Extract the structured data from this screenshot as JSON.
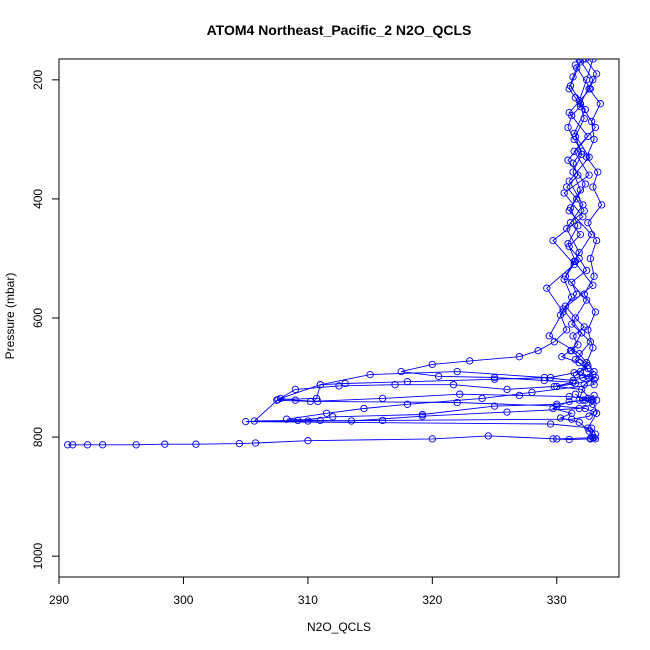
{
  "chart_data": {
    "type": "line",
    "title": "ATOM4 Northeast_Pacific_2 N2O_QCLS",
    "xlabel": "N2O_QCLS",
    "ylabel": "Pressure (mbar)",
    "xlim": [
      290,
      335
    ],
    "ylim": [
      1035,
      165
    ],
    "y_reversed": true,
    "x_ticks": [
      290,
      300,
      310,
      320,
      330
    ],
    "y_ticks": [
      200,
      400,
      600,
      800,
      1000
    ],
    "grid": false,
    "legend": "none",
    "marker": "open-circle",
    "color": "#0000ff",
    "series": [
      {
        "values": [
          [
            332.1,
            165
          ],
          [
            331.6,
            180
          ],
          [
            331.3,
            195
          ],
          [
            331.0,
            215
          ],
          [
            331.5,
            230
          ],
          [
            331.9,
            245
          ],
          [
            331.2,
            260
          ],
          [
            330.9,
            280
          ],
          [
            331.4,
            300
          ],
          [
            332.0,
            320
          ],
          [
            331.3,
            340
          ],
          [
            331.7,
            360
          ],
          [
            330.8,
            380
          ],
          [
            331.6,
            400
          ],
          [
            332.2,
            420
          ],
          [
            331.1,
            440
          ],
          [
            331.9,
            460
          ],
          [
            331.0,
            480
          ],
          [
            331.8,
            500
          ],
          [
            332.4,
            520
          ],
          [
            331.2,
            540
          ],
          [
            331.6,
            560
          ],
          [
            330.7,
            580
          ],
          [
            331.5,
            600
          ],
          [
            332.2,
            615
          ],
          [
            331.3,
            630
          ],
          [
            331.7,
            645
          ],
          [
            331.1,
            655
          ],
          [
            330.4,
            665
          ],
          [
            331.8,
            675
          ],
          [
            332.5,
            685
          ],
          [
            331.4,
            692
          ],
          [
            329.5,
            700
          ],
          [
            325.0,
            703
          ],
          [
            318.0,
            707
          ],
          [
            313.0,
            710
          ],
          [
            311.0,
            712
          ],
          [
            307.8,
            735
          ],
          [
            309.0,
            738
          ],
          [
            310.8,
            740
          ],
          [
            322.0,
            742
          ],
          [
            330.0,
            748
          ],
          [
            332.3,
            752
          ],
          [
            333.0,
            758
          ],
          [
            332.6,
            765
          ],
          [
            331.2,
            770
          ],
          [
            316.0,
            772
          ],
          [
            310.0,
            773
          ],
          [
            305.0,
            774
          ],
          [
            329.5,
            778
          ],
          [
            332.8,
            785
          ],
          [
            333.1,
            795
          ],
          [
            332.9,
            801
          ],
          [
            330.0,
            803
          ],
          [
            324.5,
            798
          ],
          [
            320.0,
            803
          ],
          [
            310.0,
            806
          ],
          [
            305.8,
            810
          ],
          [
            304.5,
            811
          ],
          [
            301.0,
            812
          ],
          [
            298.5,
            812
          ],
          [
            296.2,
            813
          ],
          [
            293.5,
            813
          ],
          [
            292.3,
            813
          ],
          [
            291.1,
            813
          ],
          [
            290.7,
            813
          ]
        ]
      },
      {
        "values": [
          [
            332.3,
            165
          ],
          [
            333.2,
            190
          ],
          [
            332.6,
            215
          ],
          [
            333.5,
            240
          ],
          [
            332.8,
            270
          ],
          [
            333.0,
            300
          ],
          [
            332.4,
            330
          ],
          [
            333.3,
            355
          ],
          [
            332.9,
            380
          ],
          [
            333.6,
            410
          ],
          [
            332.5,
            440
          ],
          [
            333.2,
            470
          ],
          [
            332.7,
            500
          ],
          [
            333.0,
            530
          ],
          [
            332.2,
            560
          ],
          [
            333.1,
            590
          ],
          [
            332.5,
            620
          ],
          [
            332.9,
            650
          ],
          [
            332.4,
            675
          ],
          [
            331.9,
            690
          ],
          [
            332.6,
            700
          ],
          [
            333.0,
            712
          ],
          [
            328.0,
            725
          ],
          [
            324.0,
            735
          ],
          [
            318.0,
            745
          ],
          [
            314.5,
            752
          ],
          [
            311.5,
            760
          ],
          [
            308.3,
            770
          ],
          [
            311.0,
            772
          ],
          [
            313.5,
            773
          ],
          [
            319.2,
            765
          ],
          [
            326.0,
            758
          ],
          [
            331.8,
            752
          ],
          [
            332.9,
            745
          ],
          [
            332.3,
            738
          ],
          [
            331.5,
            728
          ]
        ]
      },
      {
        "values": [
          [
            332.9,
            165
          ],
          [
            332.4,
            200
          ],
          [
            331.8,
            235
          ],
          [
            332.2,
            265
          ],
          [
            331.5,
            295
          ],
          [
            332.0,
            325
          ],
          [
            331.3,
            355
          ],
          [
            331.9,
            385
          ],
          [
            331.1,
            415
          ],
          [
            331.7,
            445
          ],
          [
            330.9,
            475
          ],
          [
            331.5,
            505
          ],
          [
            330.6,
            535
          ],
          [
            331.2,
            565
          ],
          [
            330.3,
            595
          ],
          [
            330.8,
            620
          ],
          [
            329.8,
            640
          ],
          [
            328.5,
            655
          ],
          [
            327.0,
            665
          ],
          [
            323.0,
            672
          ],
          [
            320.0,
            678
          ],
          [
            317.5,
            690
          ],
          [
            320.5,
            698
          ],
          [
            325.0,
            700
          ],
          [
            329.0,
            705
          ],
          [
            331.3,
            708
          ],
          [
            329.8,
            715
          ],
          [
            326.0,
            720
          ],
          [
            321.7,
            712
          ],
          [
            317.0,
            712
          ],
          [
            312.5,
            714
          ],
          [
            309.0,
            720
          ],
          [
            307.5,
            738
          ],
          [
            310.2,
            740
          ],
          [
            316.0,
            735
          ],
          [
            322.2,
            728
          ],
          [
            327.0,
            730
          ],
          [
            331.0,
            732
          ],
          [
            332.5,
            735
          ],
          [
            333.2,
            738
          ]
        ]
      },
      {
        "values": [
          [
            331.8,
            165
          ],
          [
            332.9,
            200
          ],
          [
            331.9,
            240
          ],
          [
            333.1,
            280
          ],
          [
            331.4,
            320
          ],
          [
            332.6,
            360
          ],
          [
            330.6,
            390
          ],
          [
            332.1,
            430
          ],
          [
            329.7,
            470
          ],
          [
            331.4,
            510
          ],
          [
            329.2,
            550
          ],
          [
            330.5,
            590
          ],
          [
            329.4,
            630
          ],
          [
            331.8,
            660
          ],
          [
            333.0,
            690
          ],
          [
            332.1,
            700
          ],
          [
            333.0,
            704
          ],
          [
            331.5,
            710
          ],
          [
            330.0,
            715
          ],
          [
            332.0,
            720
          ],
          [
            332.8,
            738
          ],
          [
            331.0,
            740
          ],
          [
            329.7,
            752
          ],
          [
            331.2,
            760
          ],
          [
            330.3,
            768
          ],
          [
            331.8,
            775
          ],
          [
            332.6,
            790
          ],
          [
            333.1,
            803
          ],
          [
            332.7,
            803
          ],
          [
            331.0,
            804
          ],
          [
            329.7,
            803
          ]
        ]
      },
      {
        "values": [
          [
            331.9,
            170
          ],
          [
            331.1,
            210
          ],
          [
            332.3,
            250
          ],
          [
            331.4,
            290
          ],
          [
            332.6,
            330
          ],
          [
            331.0,
            370
          ],
          [
            332.1,
            410
          ],
          [
            330.8,
            450
          ],
          [
            331.8,
            490
          ],
          [
            330.7,
            530
          ],
          [
            332.4,
            570
          ],
          [
            331.2,
            610
          ],
          [
            332.7,
            640
          ],
          [
            331.5,
            670
          ],
          [
            332.9,
            695
          ],
          [
            331.3,
            705
          ],
          [
            329.0,
            700
          ],
          [
            322.0,
            690
          ],
          [
            315.0,
            695
          ],
          [
            311.0,
            712
          ],
          [
            310.7,
            735
          ],
          [
            307.6,
            737
          ],
          [
            305.7,
            773
          ],
          [
            309.2,
            772
          ],
          [
            312.0,
            766
          ],
          [
            319.2,
            762
          ],
          [
            325.0,
            748
          ],
          [
            330.0,
            745
          ],
          [
            332.1,
            738
          ],
          [
            333.0,
            730
          ]
        ]
      },
      {
        "values": [
          [
            331.5,
            175
          ],
          [
            332.7,
            215
          ],
          [
            331.0,
            255
          ],
          [
            332.5,
            295
          ],
          [
            330.9,
            335
          ],
          [
            332.3,
            375
          ],
          [
            331.0,
            420
          ],
          [
            332.8,
            460
          ],
          [
            331.4,
            505
          ],
          [
            332.9,
            545
          ],
          [
            330.5,
            585
          ],
          [
            332.0,
            625
          ],
          [
            331.2,
            655
          ],
          [
            332.5,
            680
          ],
          [
            331.6,
            695
          ],
          [
            333.1,
            700
          ],
          [
            332.2,
            712
          ],
          [
            331.8,
            738
          ],
          [
            332.9,
            737
          ],
          [
            333.2,
            760
          ],
          [
            332.5,
            785
          ],
          [
            333.0,
            801
          ],
          [
            332.7,
            802
          ]
        ]
      }
    ]
  }
}
